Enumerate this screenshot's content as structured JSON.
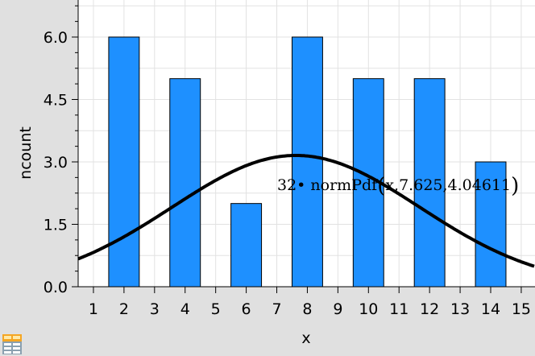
{
  "chart_data": {
    "type": "bar",
    "xlabel": "x",
    "ylabel": "ncount",
    "xlim": [
      0.5,
      15.45
    ],
    "ylim": [
      0,
      6.89
    ],
    "x_ticks": [
      1,
      2,
      3,
      4,
      5,
      6,
      7,
      8,
      9,
      10,
      11,
      12,
      13,
      14,
      15
    ],
    "y_ticks": [
      "0.0",
      "1.5",
      "3.0",
      "4.5",
      "6.0"
    ],
    "grid": true,
    "bar_width": 1,
    "categories": [
      2,
      4,
      6,
      8,
      10,
      12,
      14
    ],
    "values": [
      6,
      5,
      2,
      6,
      5,
      5,
      3
    ],
    "bar_color": "#1e90ff",
    "curve": {
      "label_prefix": "32• normPdf",
      "label_args": "x,7.625,4.04611",
      "scale": 32,
      "mean": 7.625,
      "sd": 4.04611,
      "color": "#000000"
    }
  },
  "icons": {
    "bottom_left": "table-view-icon"
  }
}
